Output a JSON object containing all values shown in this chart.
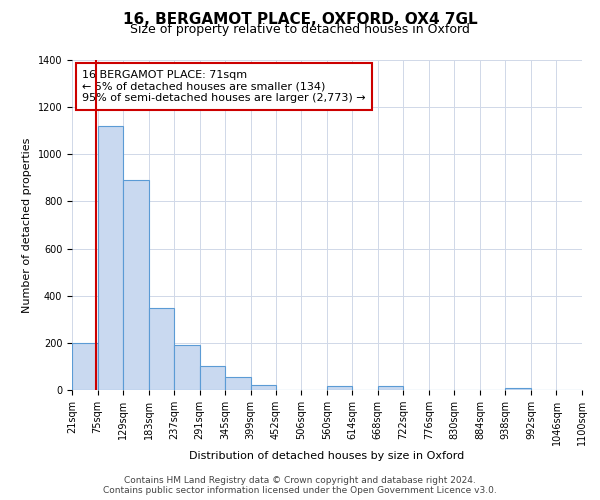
{
  "title": "16, BERGAMOT PLACE, OXFORD, OX4 7GL",
  "subtitle": "Size of property relative to detached houses in Oxford",
  "xlabel": "Distribution of detached houses by size in Oxford",
  "ylabel": "Number of detached properties",
  "bar_edges": [
    21,
    75,
    129,
    183,
    237,
    291,
    345,
    399,
    452,
    506,
    560,
    614,
    668,
    722,
    776,
    830,
    884,
    938,
    992,
    1046,
    1100
  ],
  "bar_heights": [
    200,
    1120,
    890,
    350,
    193,
    100,
    55,
    20,
    0,
    0,
    15,
    0,
    15,
    0,
    0,
    0,
    0,
    10,
    0,
    0
  ],
  "bar_color": "#c9d9f0",
  "bar_edge_color": "#5b9bd5",
  "property_line_x": 71,
  "property_line_color": "#cc0000",
  "annotation_line1": "16 BERGAMOT PLACE: 71sqm",
  "annotation_line2": "← 5% of detached houses are smaller (134)",
  "annotation_line3": "95% of semi-detached houses are larger (2,773) →",
  "annotation_box_color": "#ffffff",
  "annotation_box_edge_color": "#cc0000",
  "ylim": [
    0,
    1400
  ],
  "yticks": [
    0,
    200,
    400,
    600,
    800,
    1000,
    1200,
    1400
  ],
  "xtick_labels": [
    "21sqm",
    "75sqm",
    "129sqm",
    "183sqm",
    "237sqm",
    "291sqm",
    "345sqm",
    "399sqm",
    "452sqm",
    "506sqm",
    "560sqm",
    "614sqm",
    "668sqm",
    "722sqm",
    "776sqm",
    "830sqm",
    "884sqm",
    "938sqm",
    "992sqm",
    "1046sqm",
    "1100sqm"
  ],
  "footer_line1": "Contains HM Land Registry data © Crown copyright and database right 2024.",
  "footer_line2": "Contains public sector information licensed under the Open Government Licence v3.0.",
  "bg_color": "#ffffff",
  "grid_color": "#d0d8e8",
  "title_fontsize": 11,
  "subtitle_fontsize": 9,
  "axis_label_fontsize": 8,
  "tick_fontsize": 7,
  "annotation_fontsize": 8,
  "footer_fontsize": 6.5
}
